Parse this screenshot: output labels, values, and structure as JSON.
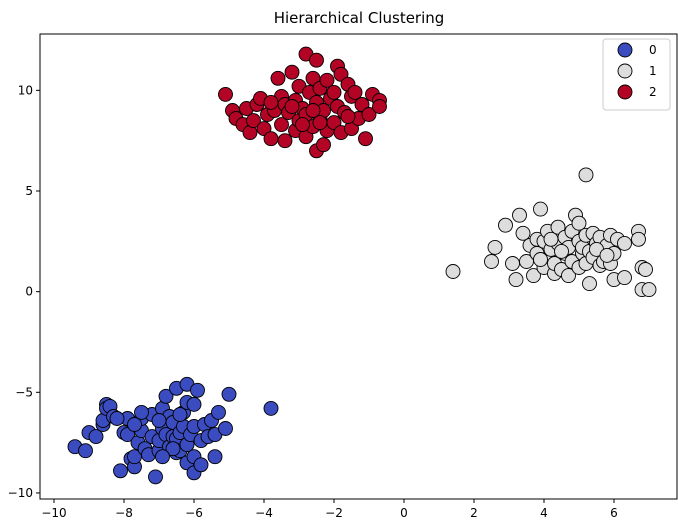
{
  "chart_data": {
    "type": "scatter",
    "title": "Hierarchical Clustering",
    "xlabel": "",
    "ylabel": "",
    "xlim": [
      -10.4,
      7.8
    ],
    "ylim": [
      -10.3,
      12.8
    ],
    "xticks": [
      -10,
      -8,
      -6,
      -4,
      -2,
      0,
      2,
      4,
      6
    ],
    "yticks": [
      -10,
      -5,
      0,
      5,
      10
    ],
    "grid": false,
    "legend_position": "top-right",
    "series": [
      {
        "name": "0",
        "color": "#3b4cc0",
        "points": [
          [
            -9.4,
            -7.7
          ],
          [
            -9.1,
            -7.9
          ],
          [
            -9.0,
            -7.0
          ],
          [
            -8.8,
            -7.2
          ],
          [
            -8.6,
            -6.6
          ],
          [
            -8.6,
            -6.4
          ],
          [
            -8.5,
            -5.6
          ],
          [
            -8.5,
            -5.8
          ],
          [
            -8.4,
            -5.7
          ],
          [
            -8.3,
            -6.2
          ],
          [
            -8.1,
            -8.9
          ],
          [
            -8.0,
            -7.0
          ],
          [
            -7.9,
            -7.1
          ],
          [
            -7.9,
            -6.3
          ],
          [
            -7.8,
            -8.3
          ],
          [
            -7.7,
            -8.7
          ],
          [
            -7.7,
            -8.2
          ],
          [
            -7.6,
            -7.5
          ],
          [
            -7.5,
            -6.9
          ],
          [
            -7.5,
            -6.3
          ],
          [
            -7.4,
            -7.8
          ],
          [
            -7.3,
            -8.1
          ],
          [
            -7.2,
            -7.2
          ],
          [
            -7.2,
            -6.1
          ],
          [
            -7.1,
            -9.2
          ],
          [
            -7.0,
            -7.9
          ],
          [
            -7.0,
            -7.4
          ],
          [
            -6.9,
            -6.8
          ],
          [
            -6.9,
            -5.8
          ],
          [
            -6.8,
            -7.1
          ],
          [
            -6.8,
            -5.2
          ],
          [
            -6.7,
            -7.7
          ],
          [
            -6.7,
            -6.2
          ],
          [
            -6.6,
            -7.2
          ],
          [
            -6.6,
            -6.5
          ],
          [
            -6.5,
            -8.0
          ],
          [
            -6.5,
            -7.3
          ],
          [
            -6.5,
            -4.8
          ],
          [
            -6.4,
            -7.9
          ],
          [
            -6.4,
            -7.0
          ],
          [
            -6.3,
            -6.7
          ],
          [
            -6.3,
            -6.0
          ],
          [
            -6.2,
            -8.5
          ],
          [
            -6.2,
            -7.6
          ],
          [
            -6.2,
            -5.5
          ],
          [
            -6.2,
            -4.6
          ],
          [
            -6.1,
            -7.1
          ],
          [
            -6.0,
            -9.0
          ],
          [
            -6.0,
            -8.2
          ],
          [
            -6.0,
            -6.7
          ],
          [
            -6.0,
            -5.6
          ],
          [
            -5.9,
            -4.9
          ],
          [
            -5.8,
            -7.4
          ],
          [
            -5.8,
            -8.6
          ],
          [
            -5.7,
            -6.6
          ],
          [
            -5.6,
            -7.2
          ],
          [
            -5.5,
            -6.4
          ],
          [
            -5.4,
            -8.2
          ],
          [
            -5.4,
            -7.1
          ],
          [
            -5.3,
            -6.0
          ],
          [
            -5.1,
            -6.8
          ],
          [
            -5.0,
            -5.1
          ],
          [
            -3.8,
            -5.8
          ],
          [
            -8.2,
            -6.3
          ],
          [
            -7.5,
            -6.0
          ],
          [
            -6.6,
            -7.8
          ],
          [
            -7.0,
            -6.4
          ],
          [
            -6.4,
            -6.1
          ],
          [
            -7.7,
            -6.6
          ],
          [
            -6.9,
            -8.2
          ]
        ]
      },
      {
        "name": "1",
        "color": "#dddddd",
        "points": [
          [
            1.4,
            1.0
          ],
          [
            2.5,
            1.5
          ],
          [
            2.6,
            2.2
          ],
          [
            2.9,
            3.3
          ],
          [
            3.1,
            1.4
          ],
          [
            3.2,
            0.6
          ],
          [
            3.3,
            3.8
          ],
          [
            3.4,
            2.9
          ],
          [
            3.5,
            1.5
          ],
          [
            3.6,
            2.3
          ],
          [
            3.7,
            0.8
          ],
          [
            3.8,
            1.9
          ],
          [
            3.8,
            2.6
          ],
          [
            3.9,
            4.1
          ],
          [
            4.0,
            1.2
          ],
          [
            4.0,
            2.5
          ],
          [
            4.1,
            3.0
          ],
          [
            4.2,
            1.8
          ],
          [
            4.2,
            2.1
          ],
          [
            4.3,
            0.9
          ],
          [
            4.3,
            1.4
          ],
          [
            4.4,
            2.4
          ],
          [
            4.4,
            3.2
          ],
          [
            4.5,
            1.1
          ],
          [
            4.6,
            1.9
          ],
          [
            4.6,
            2.7
          ],
          [
            4.7,
            0.8
          ],
          [
            4.7,
            2.2
          ],
          [
            4.8,
            1.5
          ],
          [
            4.8,
            3.0
          ],
          [
            4.9,
            3.8
          ],
          [
            5.0,
            1.2
          ],
          [
            5.0,
            2.5
          ],
          [
            5.0,
            3.4
          ],
          [
            5.1,
            1.9
          ],
          [
            5.1,
            2.2
          ],
          [
            5.2,
            5.8
          ],
          [
            5.2,
            1.4
          ],
          [
            5.2,
            2.8
          ],
          [
            5.3,
            0.4
          ],
          [
            5.3,
            2.0
          ],
          [
            5.4,
            2.9
          ],
          [
            5.4,
            1.7
          ],
          [
            5.5,
            2.4
          ],
          [
            5.6,
            1.3
          ],
          [
            5.6,
            2.7
          ],
          [
            5.7,
            1.5
          ],
          [
            5.8,
            2.3
          ],
          [
            5.9,
            1.4
          ],
          [
            5.9,
            2.8
          ],
          [
            6.0,
            0.6
          ],
          [
            6.0,
            1.9
          ],
          [
            6.1,
            2.6
          ],
          [
            6.3,
            2.4
          ],
          [
            6.3,
            0.7
          ],
          [
            6.7,
            3.0
          ],
          [
            6.7,
            2.6
          ],
          [
            6.8,
            1.2
          ],
          [
            6.8,
            0.1
          ],
          [
            6.9,
            1.1
          ],
          [
            7.0,
            0.1
          ],
          [
            4.5,
            2.0
          ],
          [
            3.9,
            1.6
          ],
          [
            5.5,
            2.1
          ],
          [
            4.2,
            2.6
          ],
          [
            5.8,
            1.8
          ]
        ]
      },
      {
        "name": "2",
        "color": "#b40426",
        "points": [
          [
            -5.1,
            9.8
          ],
          [
            -4.9,
            9.0
          ],
          [
            -4.8,
            8.6
          ],
          [
            -4.6,
            8.3
          ],
          [
            -4.5,
            9.1
          ],
          [
            -4.4,
            7.9
          ],
          [
            -4.3,
            8.5
          ],
          [
            -4.2,
            9.3
          ],
          [
            -4.1,
            9.6
          ],
          [
            -4.0,
            8.1
          ],
          [
            -3.9,
            8.8
          ],
          [
            -3.8,
            7.6
          ],
          [
            -3.7,
            9.0
          ],
          [
            -3.6,
            10.6
          ],
          [
            -3.5,
            8.3
          ],
          [
            -3.5,
            9.7
          ],
          [
            -3.4,
            7.5
          ],
          [
            -3.4,
            9.3
          ],
          [
            -3.3,
            8.9
          ],
          [
            -3.2,
            10.9
          ],
          [
            -3.1,
            8.0
          ],
          [
            -3.1,
            9.5
          ],
          [
            -3.0,
            8.5
          ],
          [
            -3.0,
            10.2
          ],
          [
            -2.9,
            9.1
          ],
          [
            -2.8,
            11.8
          ],
          [
            -2.8,
            7.7
          ],
          [
            -2.8,
            8.8
          ],
          [
            -2.7,
            9.9
          ],
          [
            -2.6,
            8.2
          ],
          [
            -2.6,
            10.6
          ],
          [
            -2.5,
            7.0
          ],
          [
            -2.5,
            9.4
          ],
          [
            -2.5,
            11.5
          ],
          [
            -2.4,
            8.6
          ],
          [
            -2.4,
            10.1
          ],
          [
            -2.3,
            7.3
          ],
          [
            -2.3,
            9.0
          ],
          [
            -2.2,
            8.0
          ],
          [
            -2.2,
            10.5
          ],
          [
            -2.1,
            9.6
          ],
          [
            -2.0,
            8.4
          ],
          [
            -1.9,
            11.2
          ],
          [
            -1.9,
            9.2
          ],
          [
            -1.8,
            10.8
          ],
          [
            -1.8,
            7.9
          ],
          [
            -1.7,
            8.9
          ],
          [
            -1.6,
            10.3
          ],
          [
            -1.5,
            9.7
          ],
          [
            -1.5,
            8.1
          ],
          [
            -1.4,
            9.9
          ],
          [
            -1.3,
            8.6
          ],
          [
            -1.2,
            9.3
          ],
          [
            -1.1,
            7.6
          ],
          [
            -1.0,
            8.8
          ],
          [
            -0.9,
            9.8
          ],
          [
            -0.7,
            9.5
          ],
          [
            -0.7,
            9.2
          ],
          [
            -2.6,
            9.0
          ],
          [
            -3.2,
            9.2
          ],
          [
            -2.0,
            9.9
          ],
          [
            -2.9,
            8.3
          ],
          [
            -3.8,
            9.4
          ],
          [
            -1.6,
            8.7
          ],
          [
            -2.4,
            8.4
          ]
        ]
      }
    ]
  }
}
